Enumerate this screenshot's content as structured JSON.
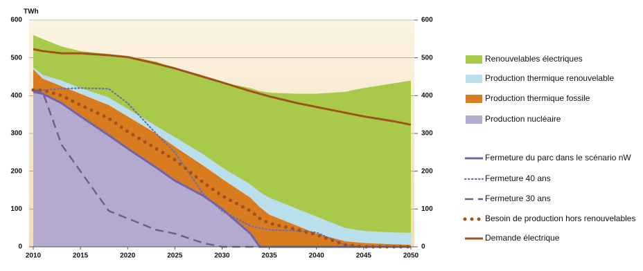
{
  "chart_data": {
    "type": "area",
    "y_label": "TWh",
    "x": [
      2010,
      2011,
      2013,
      2015,
      2018,
      2020,
      2023,
      2025,
      2028,
      2030,
      2033,
      2034,
      2035,
      2038,
      2040,
      2043,
      2045,
      2048,
      2050
    ],
    "xlim": [
      2010,
      2050
    ],
    "xticks": [
      2010,
      2015,
      2020,
      2025,
      2030,
      2035,
      2040,
      2045,
      2050
    ],
    "ylim": [
      0,
      600
    ],
    "yticks": [
      0,
      100,
      200,
      300,
      400,
      500,
      600
    ],
    "y2lim": [
      0,
      600
    ],
    "y2ticks": [
      0,
      100,
      200,
      300,
      400,
      500,
      600
    ],
    "grid": true,
    "series": [
      {
        "name": "Renouvelables électriques",
        "kind": "area",
        "color": "#a9c94b",
        "values": [
          85,
          95,
          90,
          98,
          115,
          140,
          170,
          180,
          205,
          225,
          255,
          267,
          278,
          305,
          325,
          360,
          378,
          394,
          403
        ]
      },
      {
        "name": "Production thermique renouvelable",
        "kind": "area",
        "color": "#b9deec",
        "values": [
          5,
          10,
          15,
          15,
          20,
          20,
          20,
          25,
          30,
          30,
          35,
          40,
          45,
          45,
          45,
          35,
          32,
          31,
          32
        ]
      },
      {
        "name": "Production thermique fossile",
        "kind": "area",
        "color": "#d97c20",
        "values": [
          60,
          40,
          45,
          60,
          80,
          85,
          90,
          90,
          80,
          80,
          95,
          105,
          85,
          55,
          35,
          15,
          10,
          7,
          5
        ]
      },
      {
        "name": "Production nucléaire",
        "kind": "area",
        "color": "#b4aad0",
        "values": [
          410,
          405,
          380,
          345,
          295,
          260,
          210,
          175,
          135,
          100,
          35,
          0,
          0,
          0,
          0,
          0,
          0,
          0,
          0
        ]
      },
      {
        "name": "Fermeture du parc dans le scénario nW",
        "kind": "line",
        "style": "solid",
        "color": "#7563a6",
        "values": [
          410,
          405,
          380,
          345,
          295,
          260,
          210,
          175,
          135,
          100,
          35,
          0,
          0,
          0,
          0,
          0,
          0,
          0,
          0
        ]
      },
      {
        "name": "Fermeture 40 ans",
        "kind": "line",
        "style": "dotted",
        "color": "#6a6fab",
        "values": [
          415,
          415,
          418,
          420,
          418,
          380,
          300,
          250,
          140,
          95,
          55,
          50,
          45,
          42,
          38,
          5,
          0,
          0,
          0
        ]
      },
      {
        "name": "Fermeture 30 ans",
        "kind": "line",
        "style": "dashed",
        "color": "#6b6092",
        "values": [
          415,
          410,
          270,
          200,
          95,
          75,
          45,
          35,
          10,
          0,
          0,
          0,
          0,
          0,
          0,
          0,
          0,
          0,
          0
        ]
      },
      {
        "name": "Besoin de production hors renouvelables",
        "kind": "line",
        "style": "dots",
        "color": "#a0521d",
        "values": [
          415,
          415,
          400,
          375,
          340,
          305,
          260,
          230,
          170,
          135,
          95,
          75,
          62,
          45,
          32,
          5,
          0,
          0,
          0
        ]
      },
      {
        "name": "Demande électrique",
        "kind": "line",
        "style": "solid",
        "color": "#a0521d",
        "values": [
          523,
          518,
          512,
          512,
          507,
          502,
          485,
          472,
          450,
          435,
          412,
          405,
          398,
          380,
          370,
          355,
          345,
          333,
          323
        ]
      }
    ]
  }
}
